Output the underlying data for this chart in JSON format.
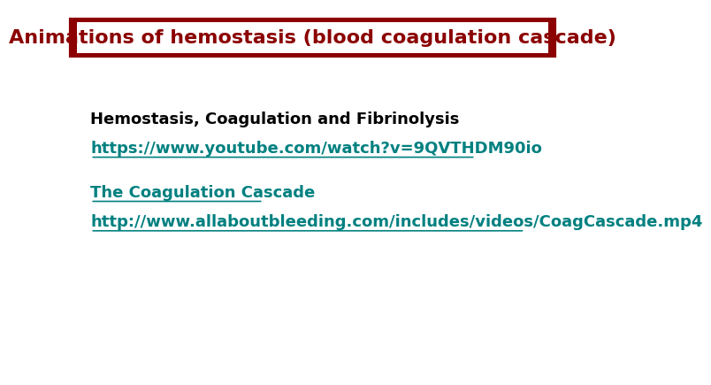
{
  "title": "Animations of hemostasis (blood coagulation cascade)",
  "title_color": "#8B0000",
  "title_bg_color": "#ffffff",
  "title_border_color": "#8B0000",
  "bg_color": "#ffffff",
  "line1_bold": "Hemostasis, Coagulation and Fibrinolysis",
  "line1_link": "https://www.youtube.com/watch?v=9QVTHDM90io",
  "line2_bold": "The Coagulation Cascade",
  "line2_link": "http://www.allaboutbleeding.com/includes/videos/CoagCascade.mp4",
  "text_color": "#000000",
  "link_color": "#008080",
  "bold_fontsize": 13,
  "link_fontsize": 13,
  "title_fontsize": 16
}
